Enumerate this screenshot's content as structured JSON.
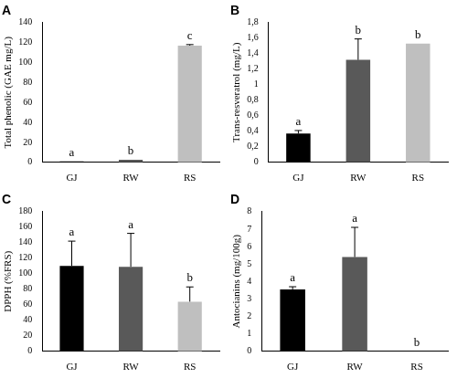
{
  "chart_data": [
    {
      "type": "bar",
      "title": "A",
      "y_label": "Total phenolic (GAE mg/L)",
      "categories": [
        "GJ",
        "RW",
        "RS"
      ],
      "values": [
        1,
        2.5,
        117
      ],
      "errors": [
        0,
        0,
        1
      ],
      "annotations": [
        "a",
        "b",
        "c"
      ],
      "colors": [
        "#000000",
        "#595959",
        "#bfbfbf"
      ],
      "ylim": [
        0,
        140
      ],
      "yticks": [
        0,
        20,
        40,
        60,
        80,
        100,
        120,
        140
      ],
      "grid": false
    },
    {
      "type": "bar",
      "title": "B",
      "y_label": "Trans-resveratrol (mg/L)",
      "categories": [
        "GJ",
        "RW",
        "RS"
      ],
      "values": [
        0.37,
        1.32,
        1.53
      ],
      "errors": [
        0.04,
        0.27,
        0
      ],
      "annotations": [
        "a",
        "b",
        "b"
      ],
      "colors": [
        "#000000",
        "#595959",
        "#bfbfbf"
      ],
      "ylim": [
        0,
        1.8
      ],
      "yticks": [
        0,
        {
          "value": 0.2,
          "label": "0,2"
        },
        {
          "value": 0.4,
          "label": "0,4"
        },
        {
          "value": 0.6,
          "label": "0,6"
        },
        {
          "value": 0.8,
          "label": "0,8"
        },
        1,
        {
          "value": 1.2,
          "label": "1,2"
        },
        {
          "value": 1.4,
          "label": "1,4"
        },
        {
          "value": 1.6,
          "label": "1,6"
        },
        {
          "value": 1.8,
          "label": "1,8"
        }
      ],
      "grid": false
    },
    {
      "type": "bar",
      "title": "C",
      "y_label": "DPPH (%FRS)",
      "categories": [
        "GJ",
        "RW",
        "RS"
      ],
      "values": [
        110,
        109,
        64
      ],
      "errors": [
        32,
        43,
        19
      ],
      "annotations": [
        "a",
        "a",
        "b"
      ],
      "colors": [
        "#000000",
        "#595959",
        "#bfbfbf"
      ],
      "ylim": [
        0,
        180
      ],
      "yticks": [
        0,
        20,
        40,
        60,
        80,
        100,
        120,
        140,
        160,
        180
      ],
      "grid": false
    },
    {
      "type": "bar",
      "title": "D",
      "y_label": "Antocianins (mg/100g)",
      "categories": [
        "GJ",
        "RW",
        "RS"
      ],
      "values": [
        3.55,
        5.4,
        0
      ],
      "errors": [
        0.15,
        1.7,
        0
      ],
      "annotations": [
        "a",
        "a",
        "b"
      ],
      "colors": [
        "#000000",
        "#595959",
        "#bfbfbf"
      ],
      "ylim": [
        0,
        8
      ],
      "yticks": [
        0,
        1,
        2,
        3,
        4,
        5,
        6,
        7,
        8
      ],
      "grid": false
    }
  ]
}
